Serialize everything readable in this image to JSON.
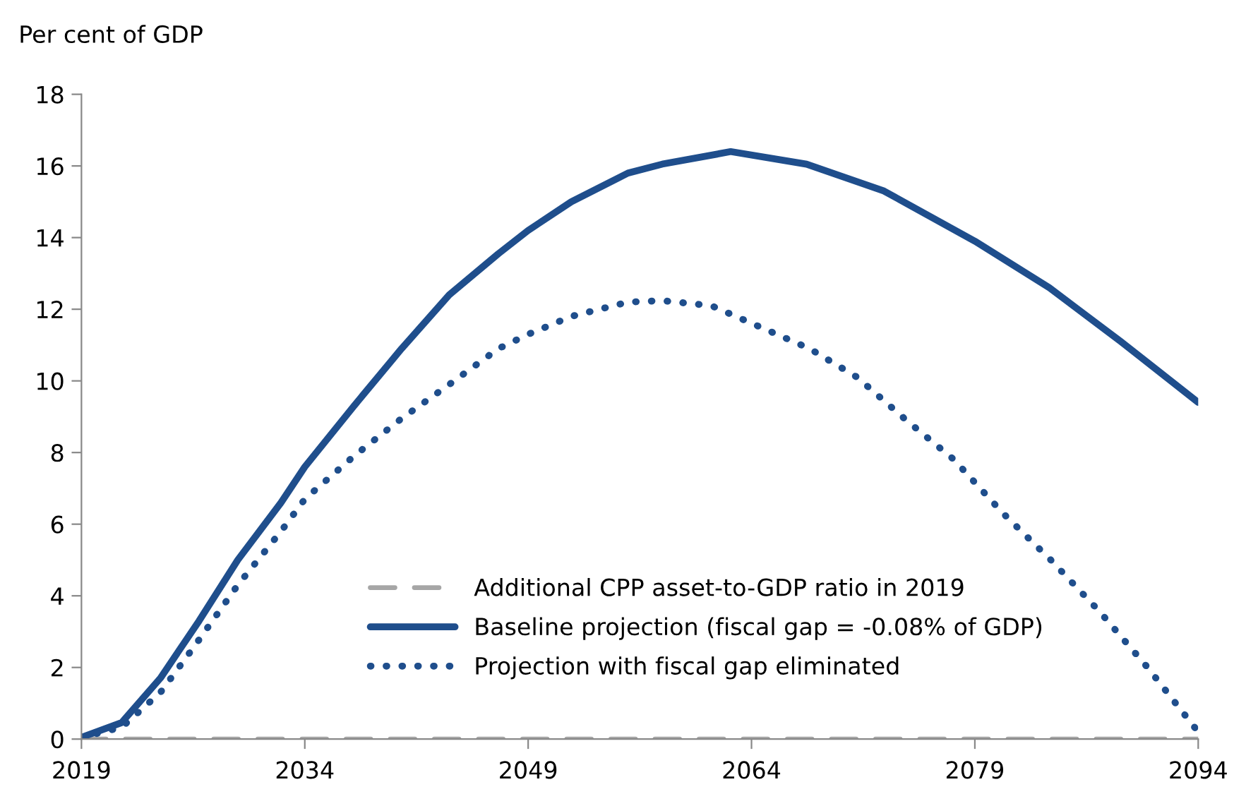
{
  "chart_data": {
    "type": "line",
    "ylabel": "Per cent of GDP",
    "xlim": [
      2019,
      2094
    ],
    "xticks": [
      2019,
      2034,
      2049,
      2064,
      2079,
      2094
    ],
    "ylim": [
      0,
      18
    ],
    "yticks": [
      0,
      2,
      4,
      6,
      8,
      10,
      12,
      14,
      16,
      18
    ],
    "grid": false,
    "legend": "bottom",
    "series": [
      {
        "name": "Additional CPP asset-to-GDP ratio in 2019",
        "color": "#a6a6a6",
        "line_style": "dashed",
        "x": [
          2019,
          2094
        ],
        "values": [
          0,
          0
        ]
      },
      {
        "name": "Baseline projection (fiscal gap = -0.08% of GDP)",
        "color": "#1f4e8c",
        "line_style": "solid",
        "x": [
          2019,
          2021.7,
          2024.3,
          2026.9,
          2029.5,
          2032.4,
          2034,
          2037.3,
          2040.5,
          2043.7,
          2047,
          2049,
          2051.9,
          2055.7,
          2058,
          2062.6,
          2067.7,
          2072.9,
          2079,
          2084,
          2088.8,
          2094
        ],
        "values": [
          0.05,
          0.46,
          1.7,
          3.3,
          5.0,
          6.6,
          7.6,
          9.3,
          10.9,
          12.4,
          13.55,
          14.2,
          15.0,
          15.8,
          16.05,
          16.4,
          16.05,
          15.3,
          13.9,
          12.6,
          11.1,
          9.4
        ]
      },
      {
        "name": "Projection with fiscal gap eliminated",
        "color": "#1f4e8c",
        "line_style": "dotted",
        "x": [
          2019,
          2021.7,
          2024.3,
          2026.6,
          2029.5,
          2032.4,
          2034,
          2037.3,
          2040.5,
          2043.7,
          2047,
          2049,
          2051.9,
          2055.7,
          2058,
          2061.3,
          2064.6,
          2067.9,
          2071.1,
          2074.4,
          2077.6,
          2080.9,
          2084.1,
          2087.4,
          2090.6,
          2094
        ],
        "values": [
          0.05,
          0.33,
          1.3,
          2.6,
          4.3,
          5.8,
          6.7,
          7.9,
          8.95,
          9.9,
          10.9,
          11.3,
          11.8,
          12.2,
          12.24,
          12.1,
          11.5,
          10.9,
          10.1,
          8.9,
          7.8,
          6.3,
          5.0,
          3.55,
          2.0,
          0.2
        ]
      }
    ]
  }
}
